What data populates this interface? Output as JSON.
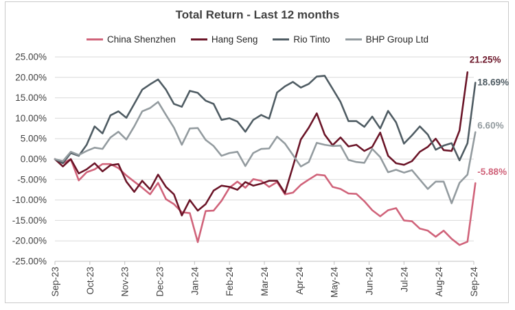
{
  "chart_data": {
    "type": "line",
    "title": "Total Return - Last 12 months",
    "xlabel": "",
    "ylabel": "",
    "ylim": [
      -25,
      25
    ],
    "ytick_labels": [
      "25.00%",
      "20.00%",
      "15.00%",
      "10.00%",
      "5.00%",
      "0.00%",
      "-5.00%",
      "-10.00%",
      "-15.00%",
      "-20.00%",
      "-25.00%"
    ],
    "yticks": [
      25,
      20,
      15,
      10,
      5,
      0,
      -5,
      -10,
      -15,
      -20,
      -25
    ],
    "xtick_labels": [
      "Sep-23",
      "Oct-23",
      "Nov-23",
      "Dec-23",
      "Jan-24",
      "Feb-24",
      "Mar-24",
      "Apr-24",
      "May-24",
      "Jun-24",
      "Jul-24",
      "Aug-24",
      "Sep-24"
    ],
    "xtick_positions": [
      0,
      4.4,
      8.8,
      13.2,
      17.6,
      22,
      26.4,
      30.8,
      35.2,
      39.6,
      44,
      48.4,
      52.8
    ],
    "x_max": 52.8,
    "grid": true,
    "legend_position": "top",
    "series": [
      {
        "name": "China Shenzhen",
        "color": "#d0637a",
        "end_label": "-5.88%",
        "values": [
          0,
          -1,
          0,
          -5.2,
          -3.2,
          -2.5,
          -1.2,
          -1.2,
          -2.2,
          -4,
          -5.5,
          -7,
          -8.6,
          -5.8,
          -9.8,
          -11,
          -13,
          -13.2,
          -20.3,
          -12.7,
          -12.6,
          -10.2,
          -7,
          -5.5,
          -7,
          -4.9,
          -5.3,
          -6.8,
          -5.6,
          -8.6,
          -8.2,
          -6.3,
          -5,
          -3.8,
          -4,
          -6.8,
          -7.3,
          -8.4,
          -8.5,
          -10.3,
          -12.5,
          -14,
          -12.5,
          -12,
          -15,
          -15.2,
          -17,
          -17.5,
          -19,
          -17.5,
          -19.5,
          -21,
          -20.2,
          -5.88
        ]
      },
      {
        "name": "Hang Seng",
        "color": "#6b1528",
        "end_label": "21.25%",
        "values": [
          0,
          -1.8,
          0,
          -3.5,
          -2.5,
          -1,
          -3,
          -1.5,
          -1.2,
          -5.5,
          -8,
          -5.3,
          -7.4,
          -3.8,
          -6.8,
          -8.6,
          -13.8,
          -10,
          -12.6,
          -11,
          -7.7,
          -6.5,
          -6.8,
          -7.5,
          -5.6,
          -6.5,
          -6,
          -5.3,
          -5.3,
          -8.3,
          -1.8,
          4.8,
          7.7,
          11.2,
          6,
          3.4,
          5.3,
          3.1,
          3.5,
          2,
          3,
          6.5,
          0.8,
          -1,
          -1.4,
          -0.5,
          1.8,
          3,
          5,
          2.2,
          2,
          7,
          21.25
        ]
      },
      {
        "name": "Rio Tinto",
        "color": "#4f5c63",
        "end_label": "18.69%",
        "values": [
          0,
          -1,
          1.5,
          0.8,
          3.5,
          8,
          6.3,
          10.7,
          11.7,
          10.1,
          13.5,
          17,
          18.3,
          19.5,
          17,
          13.5,
          12.8,
          16.7,
          16.2,
          14.3,
          13.5,
          9.6,
          10,
          9.2,
          6.7,
          9.6,
          10.8,
          9.9,
          16.3,
          17.8,
          18.9,
          17.5,
          18.4,
          20.2,
          20.4,
          17.2,
          14,
          9.3,
          9.3,
          7.9,
          10.4,
          7.5,
          11.8,
          9,
          3.8,
          5.8,
          8,
          6,
          2.3,
          3.3,
          3.9,
          -0.3,
          3.9,
          18.69
        ]
      },
      {
        "name": "BHP Group Ltd",
        "color": "#939b9f",
        "end_label": "6.60%",
        "values": [
          0,
          -0.5,
          1.8,
          1,
          2,
          2.8,
          2.5,
          5.3,
          6.7,
          4.8,
          8,
          11.7,
          12.5,
          14,
          10.8,
          7.7,
          3.5,
          7.5,
          7.6,
          4.7,
          3.2,
          0.8,
          1.5,
          1.8,
          -1.7,
          1.5,
          2.5,
          2.6,
          5.5,
          3.8,
          1,
          -1.8,
          -0.7,
          4,
          3.5,
          3.2,
          3.3,
          -0.2,
          -0.7,
          -0.9,
          2.5,
          0.5,
          -3.2,
          -2.6,
          -3.3,
          -2.7,
          -5,
          -7.3,
          -5.5,
          -5.5,
          -10.8,
          -5.8,
          -3.8,
          6.6
        ]
      }
    ]
  }
}
